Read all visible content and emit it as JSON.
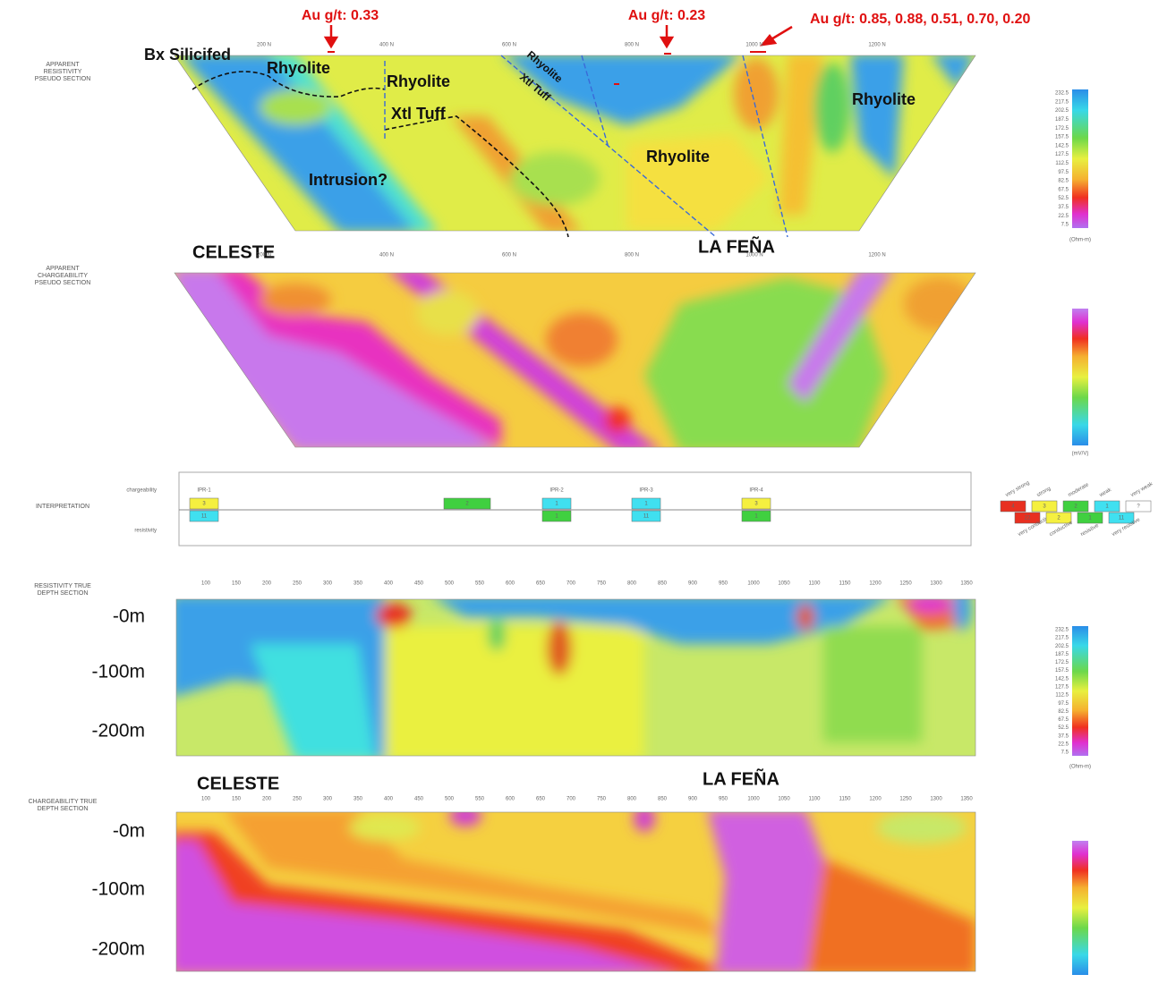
{
  "gold_assays": [
    "Au g/t: 0.33",
    "Au g/t: 0.23",
    "Au g/t: 0.85, 0.88, 0.51, 0.70, 0.20"
  ],
  "geology_labels": [
    "Bx Silicifed",
    "Rhyolite",
    "Rhyolite",
    "Xtl Tuff",
    "Intrusion?",
    "Rhyolite",
    "Rhyolite",
    "Rhyolite",
    "Xtl Tuff"
  ],
  "targets": [
    "CELESTE",
    "LA FEÑA",
    "CELESTE",
    "LA FEÑA"
  ],
  "section_titles": [
    [
      "APPARENT",
      "RESISTIVITY",
      "PSEUDO SECTION"
    ],
    [
      "APPARENT",
      "CHARGEABILITY",
      "PSEUDO SECTION"
    ],
    [
      "INTERPRETATION"
    ],
    [
      "RESISTIVITY TRUE",
      "DEPTH SECTION"
    ],
    [
      "CHARGEABILITY TRUE",
      "DEPTH SECTION"
    ]
  ],
  "pseudo_stations": [
    "200 N",
    "400 N",
    "600 N",
    "800 N",
    "1000 N",
    "1200 N"
  ],
  "depth_stations": [
    100,
    150,
    200,
    250,
    300,
    350,
    400,
    450,
    500,
    550,
    600,
    650,
    700,
    750,
    800,
    850,
    900,
    950,
    1000,
    1050,
    1100,
    1150,
    1200,
    1250,
    1300,
    1350
  ],
  "depth_labels": [
    "-0m",
    "-100m",
    "-200m"
  ],
  "interpretation": {
    "rows": [
      "chargeability",
      "resistivity"
    ],
    "anomalies": [
      {
        "label": "IPR-1",
        "chargeability": "3",
        "resistivity": "11"
      },
      {
        "chargeability": "2"
      },
      {
        "label": "IPR-2",
        "chargeability": "1",
        "resistivity": "1"
      },
      {
        "label": "IPR-3",
        "chargeability": "1",
        "resistivity": "11"
      },
      {
        "label": "IPR-4",
        "chargeability": "3",
        "resistivity": "1"
      }
    ]
  },
  "legend": {
    "chargeability": [
      {
        "code": "4",
        "label": "very strong"
      },
      {
        "code": "3",
        "label": "strong"
      },
      {
        "code": "2",
        "label": "moderate"
      },
      {
        "code": "1",
        "label": "weak"
      },
      {
        "code": "?",
        "label": "very weak"
      }
    ],
    "resistivity": [
      {
        "code": "22",
        "label": "very conductive"
      },
      {
        "code": "2",
        "label": "conductive"
      },
      {
        "code": "1",
        "label": "resistive"
      },
      {
        "code": "11",
        "label": "very resistive"
      }
    ]
  },
  "colorbar": {
    "resistivity": [
      "232.5",
      "217.5",
      "202.5",
      "187.5",
      "172.5",
      "157.5",
      "142.5",
      "127.5",
      "112.5",
      "97.5",
      "82.5",
      "67.5",
      "52.5",
      "37.5",
      "22.5",
      "7.5"
    ],
    "resistivity_units": "(Ohm-m)",
    "chargeability_units": "(mV/V)"
  }
}
